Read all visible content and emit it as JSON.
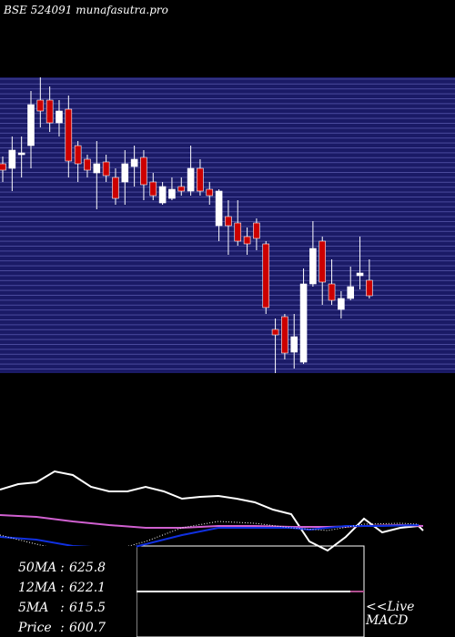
{
  "chart_data": [
    {
      "type": "candlestick",
      "title": "BSE 524091 munafasutra.pro",
      "ylim": [
        555,
        717.5
      ],
      "up_color": "#ffffff",
      "down_color": "#cc0000",
      "open": [
        670,
        667.5,
        675,
        680,
        705,
        705,
        692.5,
        700,
        680,
        672.5,
        665,
        671,
        662.5,
        660,
        668.5,
        673.5,
        660,
        648.5,
        651,
        657.5,
        655,
        667.5,
        656,
        636,
        641,
        637.5,
        630,
        637.5,
        626,
        579,
        586,
        566.5,
        561,
        604,
        627.5,
        604,
        590,
        596,
        608.5,
        606
      ],
      "high": [
        674,
        685,
        685,
        710,
        717.5,
        712.5,
        705,
        707.5,
        682.5,
        675,
        682.5,
        675,
        667.5,
        677.5,
        680,
        677.5,
        665,
        660,
        662.5,
        662.5,
        680,
        672.5,
        660,
        656,
        650,
        650,
        635,
        640,
        627.5,
        585,
        587.5,
        587.5,
        612.5,
        638.5,
        630,
        617.5,
        600,
        613.5,
        630,
        617.5
      ],
      "low": [
        660,
        655,
        662.5,
        667.5,
        690,
        687.5,
        685,
        662.5,
        660,
        662.5,
        645,
        660,
        647.5,
        647.5,
        657.5,
        650,
        650,
        647.5,
        650,
        652.5,
        652.5,
        652.5,
        647.5,
        627.5,
        620,
        625,
        620,
        622.5,
        587.5,
        555,
        562.5,
        557.5,
        560,
        602.5,
        592.5,
        592.5,
        585,
        595,
        601,
        596
      ],
      "close": [
        666.5,
        677.5,
        676,
        702.5,
        699,
        692.5,
        699,
        671.5,
        670,
        666.5,
        670,
        663.5,
        651,
        670,
        672.5,
        658.5,
        652.5,
        657.5,
        656,
        655,
        667.5,
        655,
        652.5,
        655,
        636,
        627.5,
        626,
        629,
        591,
        576,
        566,
        575,
        604,
        623.5,
        605,
        595,
        596,
        602.5,
        610,
        597.5
      ]
    },
    {
      "type": "line",
      "xlim": [
        0,
        500
      ],
      "ylim": [
        90,
        200
      ],
      "series": [
        {
          "color": "#ffffff",
          "x": [
            0,
            20,
            40,
            60,
            80,
            100,
            120,
            140,
            160,
            180,
            200,
            220,
            240,
            260,
            280,
            300,
            320,
            340,
            360,
            380,
            400,
            420,
            440,
            460,
            465
          ],
          "values": [
            162,
            168,
            170,
            182,
            178,
            165,
            160,
            160,
            165,
            160,
            152,
            154,
            155,
            152,
            148,
            140,
            135,
            105,
            95,
            110,
            130,
            115,
            120,
            122,
            117
          ]
        },
        {
          "color": "#d060d0",
          "x": [
            0,
            40,
            80,
            120,
            160,
            200,
            240,
            280,
            320,
            360,
            400,
            440,
            465
          ],
          "values": [
            134,
            132,
            127,
            123,
            120,
            120,
            122,
            122,
            121,
            121,
            122,
            123,
            122
          ]
        },
        {
          "color": "#1030e0",
          "x": [
            0,
            40,
            80,
            120,
            140,
            160,
            200,
            240,
            280,
            320,
            340,
            380,
            420,
            460
          ],
          "values": [
            110,
            107,
            100,
            98,
            97,
            102,
            112,
            120,
            120,
            120,
            118,
            122,
            122,
            123
          ]
        },
        {
          "color": "#ffffff",
          "dashed": true,
          "x": [
            0,
            40,
            80,
            120,
            160,
            200,
            240,
            280,
            320,
            360,
            400,
            440,
            460
          ],
          "values": [
            112,
            102,
            93,
            94,
            105,
            120,
            127,
            125,
            120,
            117,
            124,
            125,
            124
          ]
        }
      ]
    }
  ],
  "stats": [
    {
      "label": "50MA",
      "value": "625.8"
    },
    {
      "label": "12MA",
      "value": "622.1"
    },
    {
      "label": "5MA",
      "value": "615.5"
    },
    {
      "label": "Price",
      "value": "600.7"
    }
  ],
  "live": "<<Live",
  "macd": "MACD"
}
